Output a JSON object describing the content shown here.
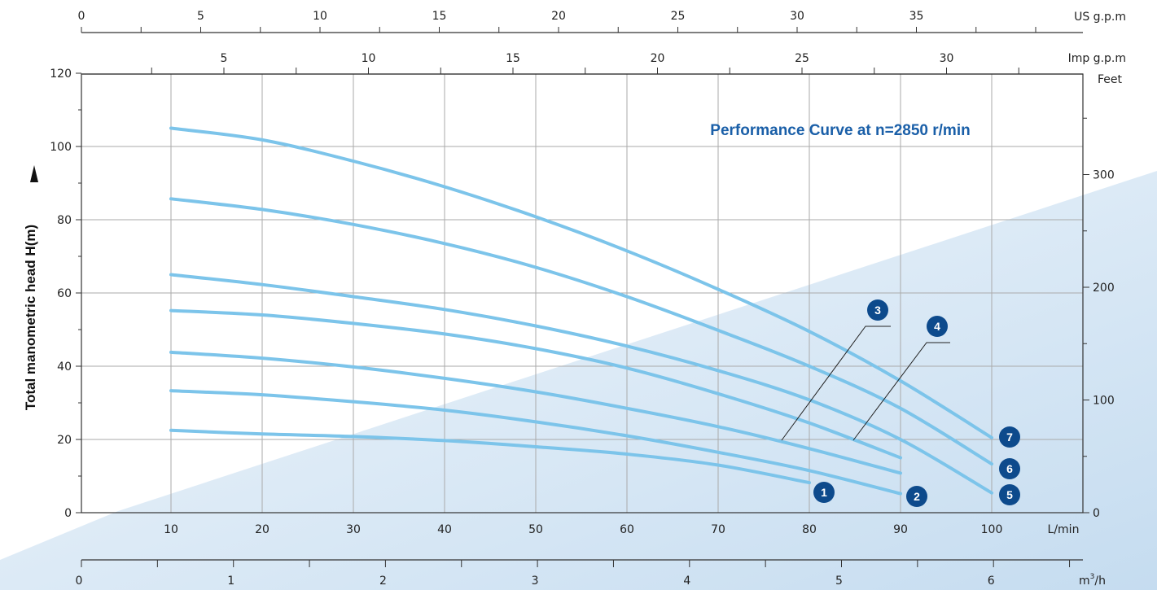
{
  "chart_data": {
    "type": "line",
    "title": "Performance Curve at n=2850 r/min",
    "ylabel": "Total manometric head H(m)",
    "xunit": "L/min",
    "ylim": [
      0,
      120
    ],
    "xlim": [
      0,
      110
    ],
    "grid": true,
    "y_ticks": [
      0,
      20,
      40,
      60,
      80,
      100,
      120
    ],
    "x_ticks": [
      10,
      20,
      30,
      40,
      50,
      60,
      70,
      80,
      90,
      100
    ],
    "secondary_axes": {
      "feet": {
        "label": "Feet",
        "ticks": [
          0,
          100,
          200,
          300
        ]
      },
      "us_gpm": {
        "label": "US g.p.m",
        "ticks": [
          0,
          5,
          10,
          15,
          20,
          25,
          30,
          35
        ]
      },
      "imp_gpm": {
        "label": "Imp g.p.m",
        "ticks": [
          5,
          10,
          15,
          20,
          25,
          30
        ]
      },
      "m3h": {
        "label_base": "m",
        "label_sup": "3",
        "label_tail": "/h",
        "ticks": [
          0,
          1,
          2,
          3,
          4,
          5,
          6
        ]
      }
    },
    "series": [
      {
        "name": "1",
        "x": [
          10,
          20,
          30,
          40,
          50,
          60,
          70,
          80
        ],
        "y": [
          22.5,
          21.5,
          20.8,
          19.7,
          18.0,
          16.0,
          13.0,
          8.2
        ]
      },
      {
        "name": "2",
        "x": [
          10,
          20,
          30,
          40,
          50,
          60,
          70,
          80,
          90
        ],
        "y": [
          33.3,
          32.2,
          30.3,
          28.0,
          24.8,
          21.0,
          16.5,
          11.5,
          5.2
        ]
      },
      {
        "name": "3",
        "x": [
          10,
          20,
          30,
          40,
          50,
          60,
          70,
          80,
          90
        ],
        "y": [
          43.8,
          42.2,
          39.8,
          36.7,
          33.0,
          28.5,
          23.5,
          17.5,
          10.8
        ]
      },
      {
        "name": "4",
        "x": [
          10,
          20,
          30,
          40,
          50,
          60,
          70,
          80,
          90
        ],
        "y": [
          55.2,
          54.0,
          51.7,
          48.8,
          44.8,
          39.5,
          32.5,
          24.5,
          15.0
        ]
      },
      {
        "name": "5",
        "x": [
          10,
          20,
          30,
          40,
          50,
          60,
          70,
          80,
          90,
          100
        ],
        "y": [
          65.0,
          62.3,
          59.0,
          55.5,
          51.0,
          45.5,
          38.8,
          30.8,
          20.0,
          5.4
        ]
      },
      {
        "name": "6",
        "x": [
          10,
          20,
          30,
          40,
          50,
          60,
          70,
          80,
          90,
          100
        ],
        "y": [
          85.7,
          82.8,
          78.7,
          73.5,
          67.0,
          59.0,
          49.8,
          40.0,
          28.5,
          13.3
        ]
      },
      {
        "name": "7",
        "x": [
          10,
          20,
          30,
          40,
          50,
          60,
          70,
          80,
          90,
          100
        ],
        "y": [
          105.0,
          101.8,
          96.0,
          89.0,
          80.8,
          71.5,
          61.0,
          49.5,
          36.0,
          20.5
        ]
      }
    ],
    "colors": {
      "curve": "#7cc4ea",
      "badge": "#0d4a8c",
      "title": "#1a5fa8",
      "grid": "#aaaaaa",
      "axis": "#333333"
    }
  }
}
